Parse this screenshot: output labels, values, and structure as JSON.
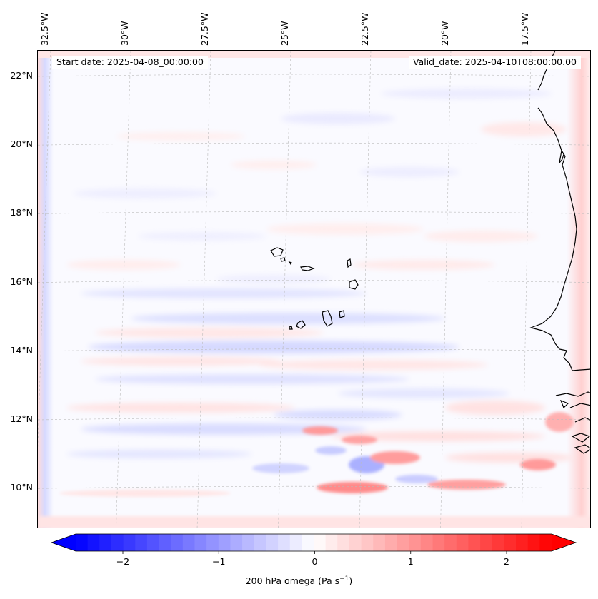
{
  "map": {
    "start_date": "Start date: 2025-04-08_00:00:00",
    "valid_date": "Valid_date: 2025-04-10T08:00:00.00",
    "lon_labels": [
      {
        "text": "32.5°W",
        "value": -32.5
      },
      {
        "text": "30°W",
        "value": -30
      },
      {
        "text": "27.5°W",
        "value": -27.5
      },
      {
        "text": "25°W",
        "value": -25
      },
      {
        "text": "22.5°W",
        "value": -22.5
      },
      {
        "text": "20°W",
        "value": -20
      },
      {
        "text": "17.5°W",
        "value": -17.5
      }
    ],
    "lat_labels": [
      {
        "text": "22°N",
        "value": 22
      },
      {
        "text": "20°N",
        "value": 20
      },
      {
        "text": "18°N",
        "value": 18
      },
      {
        "text": "16°N",
        "value": 16
      },
      {
        "text": "14°N",
        "value": 14
      },
      {
        "text": "12°N",
        "value": 12
      },
      {
        "text": "10°N",
        "value": 10
      }
    ],
    "colors": {
      "negative": "#0000ff",
      "positive": "#ff0000",
      "zero": "#ffffff"
    }
  },
  "colorbar": {
    "ticks": [
      {
        "text": "−2",
        "value": -2
      },
      {
        "text": "−1",
        "value": -1
      },
      {
        "text": "0",
        "value": 0
      },
      {
        "text": "1",
        "value": 1
      },
      {
        "text": "2",
        "value": 2
      }
    ],
    "range": [
      -2.75,
      2.75
    ],
    "label": "200 hPa omega (Pa s",
    "label_sup": "−1",
    "label_end": ")"
  }
}
